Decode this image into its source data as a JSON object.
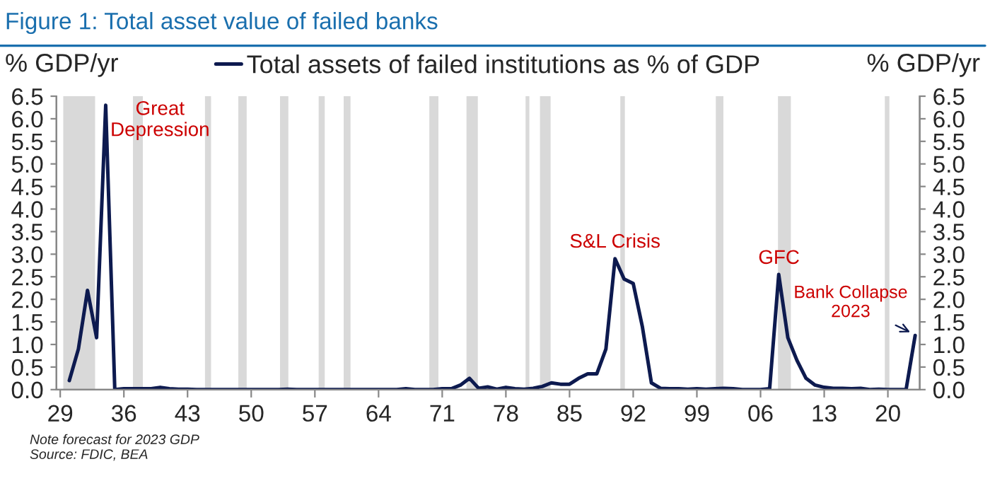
{
  "chart_data": {
    "type": "line",
    "title": "Figure 1: Total asset value of failed banks",
    "ylabel": "% GDP/yr",
    "y2label": "% GDP/yr",
    "x": [
      "1930",
      "1931",
      "1932",
      "1933",
      "1934",
      "1935",
      "1936",
      "1937",
      "1938",
      "1939",
      "1940",
      "1941",
      "1942",
      "1943",
      "1944",
      "1945",
      "1946",
      "1947",
      "1948",
      "1949",
      "1950",
      "1951",
      "1952",
      "1953",
      "1954",
      "1955",
      "1956",
      "1957",
      "1958",
      "1959",
      "1960",
      "1961",
      "1962",
      "1963",
      "1964",
      "1965",
      "1966",
      "1967",
      "1968",
      "1969",
      "1970",
      "1971",
      "1972",
      "1973",
      "1974",
      "1975",
      "1976",
      "1977",
      "1978",
      "1979",
      "1980",
      "1981",
      "1982",
      "1983",
      "1984",
      "1985",
      "1986",
      "1987",
      "1988",
      "1989",
      "1990",
      "1991",
      "1992",
      "1993",
      "1994",
      "1995",
      "1996",
      "1997",
      "1998",
      "1999",
      "2000",
      "2001",
      "2002",
      "2003",
      "2004",
      "2005",
      "2006",
      "2007",
      "2008",
      "2009",
      "2010",
      "2011",
      "2012",
      "2013",
      "2014",
      "2015",
      "2016",
      "2017",
      "2018",
      "2019",
      "2020",
      "2021",
      "2022",
      "2023"
    ],
    "series": [
      {
        "name": "Total assets of failed institutions as % of GDP",
        "color": "#0d1a4f",
        "values": [
          0.2,
          0.9,
          2.2,
          1.15,
          6.3,
          0.0,
          0.02,
          0.02,
          0.02,
          0.02,
          0.05,
          0.02,
          0.01,
          0.01,
          0.0,
          0.0,
          0.0,
          0.0,
          0.0,
          0.0,
          0.0,
          0.0,
          0.0,
          0.0,
          0.01,
          0.0,
          0.0,
          0.0,
          0.0,
          0.0,
          0.0,
          0.0,
          0.0,
          0.0,
          0.0,
          0.0,
          0.0,
          0.02,
          0.0,
          0.0,
          0.0,
          0.02,
          0.02,
          0.1,
          0.25,
          0.03,
          0.06,
          0.01,
          0.05,
          0.02,
          0.01,
          0.03,
          0.07,
          0.15,
          0.12,
          0.12,
          0.25,
          0.35,
          0.35,
          0.9,
          2.9,
          2.45,
          2.35,
          1.4,
          0.15,
          0.03,
          0.02,
          0.02,
          0.01,
          0.02,
          0.01,
          0.02,
          0.03,
          0.02,
          0.0,
          0.0,
          0.0,
          0.02,
          2.55,
          1.15,
          0.65,
          0.25,
          0.1,
          0.05,
          0.03,
          0.03,
          0.02,
          0.03,
          0.0,
          0.01,
          0.0,
          0.0,
          0.0,
          1.2
        ]
      }
    ],
    "xlim": [
      "1928-08",
      "2023-07"
    ],
    "xticks": [
      {
        "value": "1929",
        "label": "29"
      },
      {
        "value": "1936",
        "label": "36"
      },
      {
        "value": "1943",
        "label": "43"
      },
      {
        "value": "1950",
        "label": "50"
      },
      {
        "value": "1957",
        "label": "57"
      },
      {
        "value": "1964",
        "label": "64"
      },
      {
        "value": "1971",
        "label": "71"
      },
      {
        "value": "1978",
        "label": "78"
      },
      {
        "value": "1985",
        "label": "85"
      },
      {
        "value": "1992",
        "label": "92"
      },
      {
        "value": "1999",
        "label": "99"
      },
      {
        "value": "2006",
        "label": "06"
      },
      {
        "value": "2013",
        "label": "13"
      },
      {
        "value": "2020",
        "label": "20"
      }
    ],
    "ylim": [
      0,
      6.5
    ],
    "yticks": [
      {
        "value": 0,
        "label": "0.0"
      },
      {
        "value": 0.5,
        "label": "0.5"
      },
      {
        "value": 1,
        "label": "1.0"
      },
      {
        "value": 1.5,
        "label": "1.5"
      },
      {
        "value": 2,
        "label": "2.0"
      },
      {
        "value": 2.5,
        "label": "2.5"
      },
      {
        "value": 3,
        "label": "3.0"
      },
      {
        "value": 3.5,
        "label": "3.5"
      },
      {
        "value": 4,
        "label": "4.0"
      },
      {
        "value": 4.5,
        "label": "4.5"
      },
      {
        "value": 5,
        "label": "5.0"
      },
      {
        "value": 5.5,
        "label": "5.5"
      },
      {
        "value": 6,
        "label": "6.0"
      },
      {
        "value": 6.5,
        "label": "6.5"
      }
    ],
    "y2lim": [
      0,
      6.5
    ],
    "y2ticks": [
      {
        "value": 0,
        "label": "0.0"
      },
      {
        "value": 0.5,
        "label": "0.5"
      },
      {
        "value": 1,
        "label": "1.0"
      },
      {
        "value": 1.5,
        "label": "1.5"
      },
      {
        "value": 2,
        "label": "2.0"
      },
      {
        "value": 2.5,
        "label": "2.5"
      },
      {
        "value": 3,
        "label": "3.0"
      },
      {
        "value": 3.5,
        "label": "3.5"
      },
      {
        "value": 4,
        "label": "4.0"
      },
      {
        "value": 4.5,
        "label": "4.5"
      },
      {
        "value": 5,
        "label": "5.0"
      },
      {
        "value": 5.5,
        "label": "5.5"
      },
      {
        "value": 6,
        "label": "6.0"
      },
      {
        "value": 6.5,
        "label": "6.5"
      }
    ],
    "bands": [
      {
        "axis": "x",
        "from": "1929-05",
        "to": "1932-11",
        "color": "#d9d9d9"
      },
      {
        "axis": "x",
        "from": "1937-01",
        "to": "1938-02",
        "color": "#d9d9d9"
      },
      {
        "axis": "x",
        "from": "1944-12",
        "to": "1945-08",
        "color": "#d9d9d9"
      },
      {
        "axis": "x",
        "from": "1948-08",
        "to": "1949-07",
        "color": "#d9d9d9"
      },
      {
        "axis": "x",
        "from": "1953-03",
        "to": "1954-02",
        "color": "#d9d9d9"
      },
      {
        "axis": "x",
        "from": "1957-06",
        "to": "1958-02",
        "color": "#d9d9d9"
      },
      {
        "axis": "x",
        "from": "1960-03",
        "to": "1960-12",
        "color": "#d9d9d9"
      },
      {
        "axis": "x",
        "from": "1969-08",
        "to": "1970-08",
        "color": "#d9d9d9"
      },
      {
        "axis": "x",
        "from": "1973-09",
        "to": "1974-12",
        "color": "#d9d9d9"
      },
      {
        "axis": "x",
        "from": "1980-03",
        "to": "1980-08",
        "color": "#d9d9d9"
      },
      {
        "axis": "x",
        "from": "1981-10",
        "to": "1982-12",
        "color": "#d9d9d9"
      },
      {
        "axis": "x",
        "from": "1990-08",
        "to": "1991-02",
        "color": "#d9d9d9"
      },
      {
        "axis": "x",
        "from": "2001-02",
        "to": "2001-12",
        "color": "#d9d9d9"
      },
      {
        "axis": "x",
        "from": "2007-12",
        "to": "2009-05",
        "color": "#d9d9d9"
      },
      {
        "axis": "x",
        "from": "2019-09",
        "to": "2020-03",
        "color": "#d9d9d9"
      }
    ],
    "annotations": [
      "Great\nDepression",
      "S&L Crisis",
      "GFC",
      "Bank Collapse\n2023",
      "Note forecast for 2023 GDP\nSource: FDIC, BEA"
    ],
    "legend": "top",
    "grid": false,
    "line_style": "solid",
    "marker": "none"
  }
}
